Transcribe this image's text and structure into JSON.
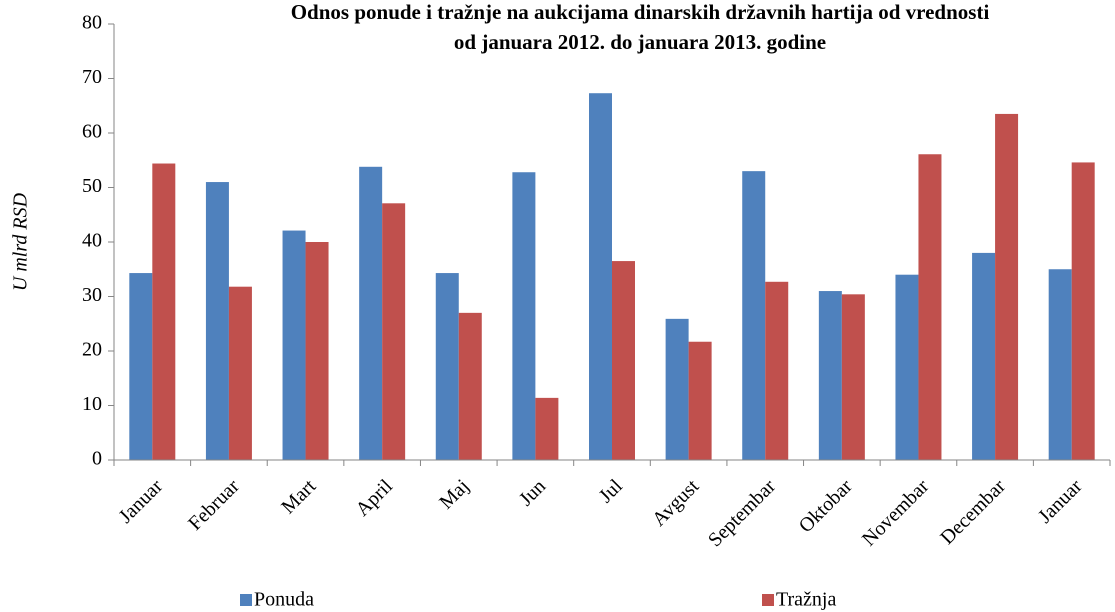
{
  "chart_data": {
    "type": "bar",
    "title": [
      "Odnos ponude i tražnje na aukcijama dinarskih državnih hartija od vrednosti",
      "od januara 2012. do januara 2013. godine"
    ],
    "y_label": "U mlrd RSD",
    "categories": [
      "Januar",
      "Februar",
      "Mart",
      "April",
      "Maj",
      "Jun",
      "Jul",
      "Avgust",
      "Septembar",
      "Oktobar",
      "Novembar",
      "Decembar",
      "Januar"
    ],
    "series": [
      {
        "name": "Ponuda",
        "color": "#4f81bd",
        "values": [
          34.3,
          51,
          42.1,
          53.8,
          34.3,
          52.8,
          67.3,
          25.9,
          53,
          31,
          34,
          38,
          35
        ]
      },
      {
        "name": "Tražnja",
        "color": "#c0504d",
        "values": [
          54.4,
          31.8,
          40,
          47.1,
          27,
          11.4,
          36.5,
          21.7,
          32.7,
          30.4,
          56.1,
          63.5,
          54.6
        ]
      }
    ],
    "ylim": [
      0,
      80
    ],
    "yticks": [
      0,
      10,
      20,
      30,
      40,
      50,
      60,
      70,
      80
    ],
    "grid": false,
    "legend": "bottom"
  }
}
